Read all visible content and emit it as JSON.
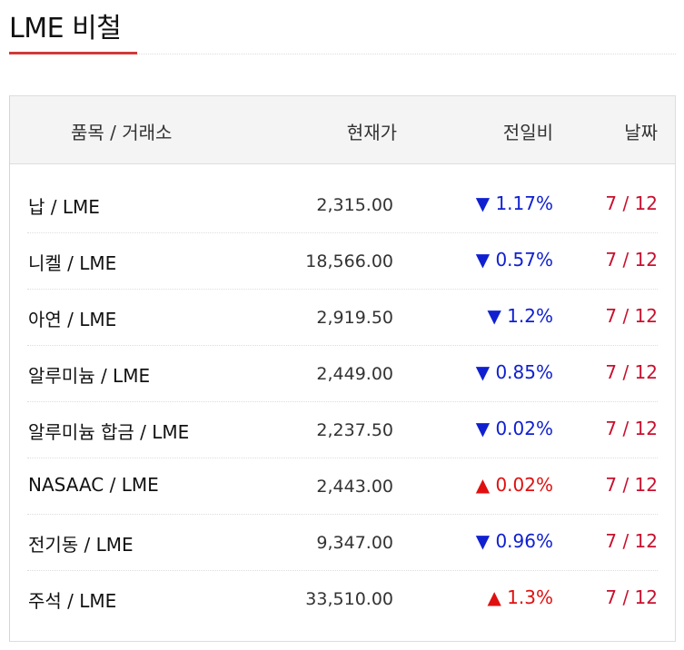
{
  "title": "LME 비철",
  "header": {
    "item": "품목 / 거래소",
    "price": "현재가",
    "change": "전일비",
    "date": "날짜"
  },
  "colors": {
    "accent": "#d03a3a",
    "down": "#1020d0",
    "up": "#e01010",
    "date": "#c8102e"
  },
  "rows": [
    {
      "name": "납 / LME",
      "price": "2,315.00",
      "change": "▼ 1.17%",
      "dir": "down",
      "date": "7 / 12"
    },
    {
      "name": "니켈 / LME",
      "price": "18,566.00",
      "change": "▼ 0.57%",
      "dir": "down",
      "date": "7 / 12"
    },
    {
      "name": "아연 / LME",
      "price": "2,919.50",
      "change": "▼ 1.2%",
      "dir": "down",
      "date": "7 / 12"
    },
    {
      "name": "알루미늄 / LME",
      "price": "2,449.00",
      "change": "▼ 0.85%",
      "dir": "down",
      "date": "7 / 12"
    },
    {
      "name": "알루미늄 합금 / LME",
      "price": "2,237.50",
      "change": "▼ 0.02%",
      "dir": "down",
      "date": "7 / 12"
    },
    {
      "name": "NASAAC / LME",
      "price": "2,443.00",
      "change": "▲ 0.02%",
      "dir": "up",
      "date": "7 / 12"
    },
    {
      "name": "전기동 / LME",
      "price": "9,347.00",
      "change": "▼ 0.96%",
      "dir": "down",
      "date": "7 / 12"
    },
    {
      "name": "주석 / LME",
      "price": "33,510.00",
      "change": "▲ 1.3%",
      "dir": "up",
      "date": "7 / 12"
    }
  ]
}
